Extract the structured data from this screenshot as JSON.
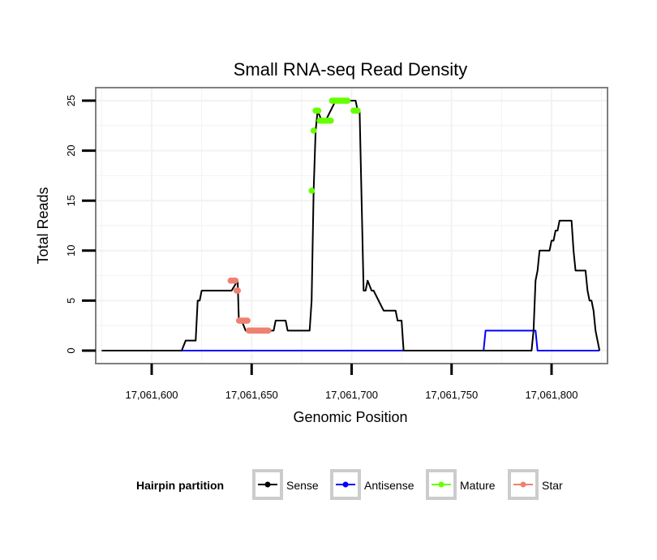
{
  "chart_data": {
    "type": "line",
    "title": "Small RNA-seq Read Density",
    "xlabel": "Genomic Position",
    "ylabel": "Total Reads",
    "xlim": [
      17061572,
      17061828
    ],
    "ylim": [
      -1.3,
      26.3
    ],
    "xticks": [
      17061600,
      17061650,
      17061700,
      17061750,
      17061800
    ],
    "xtick_labels": [
      "17,061,600",
      "17,061,650",
      "17,061,700",
      "17,061,750",
      "17,061,800"
    ],
    "yticks": [
      0,
      5,
      10,
      15,
      20,
      25
    ],
    "ytick_labels": [
      "0",
      "5",
      "10",
      "15",
      "20",
      "25"
    ],
    "grid": true,
    "legend": {
      "title": "Hairpin partition",
      "position": "bottom",
      "entries": [
        "Sense",
        "Antisense",
        "Mature",
        "Star"
      ]
    },
    "colors": {
      "Sense": "#000000",
      "Antisense": "#0000ff",
      "Mature": "#66ff00",
      "Star": "#f08070",
      "panel_border": "#7f7f7f",
      "grid": "#f2f2f2"
    },
    "series": [
      {
        "name": "Sense",
        "style": "line",
        "x": [
          17061575,
          17061615,
          17061617,
          17061622,
          17061623,
          17061624,
          17061625,
          17061640,
          17061643,
          17061643.6,
          17061645,
          17061647,
          17061650,
          17061651,
          17061656,
          17061661,
          17061662,
          17061667,
          17061668,
          17061678,
          17061679,
          17061680,
          17061681,
          17061682,
          17061683,
          17061685,
          17061687,
          17061692,
          17061702,
          17061703,
          17061704,
          17061706,
          17061707,
          17061708,
          17061710,
          17061711,
          17061716,
          17061717,
          17061722,
          17061723,
          17061725,
          17061726,
          17061790,
          17061791,
          17061792,
          17061793,
          17061794,
          17061795,
          17061799,
          17061800,
          17061801,
          17061802,
          17061803,
          17061804,
          17061805,
          17061806,
          17061810,
          17061811,
          17061812,
          17061813,
          17061817,
          17061818,
          17061819,
          17061820,
          17061821,
          17061822,
          17061823,
          17061824
        ],
        "y": [
          0,
          0,
          1,
          1,
          5,
          5,
          6,
          6,
          7,
          3,
          3,
          2,
          2,
          2,
          2,
          2,
          3,
          3,
          2,
          2,
          2,
          5,
          16,
          22,
          24,
          23,
          23,
          25,
          25,
          24,
          24,
          6,
          6,
          7,
          6,
          6,
          4,
          4,
          4,
          3,
          3,
          0,
          0,
          2,
          7,
          8,
          10,
          10,
          10,
          11,
          11,
          12,
          12,
          13,
          13,
          13,
          13,
          10,
          8,
          8,
          8,
          6,
          5,
          5,
          4,
          2,
          1,
          0
        ]
      },
      {
        "name": "Antisense",
        "style": "line",
        "x": [
          17061615,
          17061766,
          17061767,
          17061792,
          17061793,
          17061824
        ],
        "y": [
          0,
          0,
          2,
          2,
          0,
          0
        ]
      },
      {
        "name": "Mature",
        "style": "points",
        "x": [
          17061680,
          17061681,
          17061682,
          17061682.6,
          17061683.3,
          17061684,
          17061684.7,
          17061685.4,
          17061686.1,
          17061686.8,
          17061687.5,
          17061688.2,
          17061688.9,
          17061689.6,
          17061690.2,
          17061690.8,
          17061691.4,
          17061692,
          17061692.6,
          17061693.2,
          17061693.8,
          17061694.4,
          17061695,
          17061695.6,
          17061696.2,
          17061696.8,
          17061697.4,
          17061698,
          17061701,
          17061702,
          17061703
        ],
        "y": [
          16,
          22,
          24,
          24,
          24,
          23,
          23,
          23,
          23,
          23,
          23,
          23,
          23,
          23,
          25,
          25,
          25,
          25,
          25,
          25,
          25,
          25,
          25,
          25,
          25,
          25,
          25,
          25,
          24,
          24,
          24
        ]
      },
      {
        "name": "Star",
        "style": "points",
        "x": [
          17061639.5,
          17061640.1,
          17061640.7,
          17061641.3,
          17061641.9,
          17061642.5,
          17061643.1,
          17061643.7,
          17061644.4,
          17061645.1,
          17061645.8,
          17061646.5,
          17061647.2,
          17061647.9,
          17061648.6,
          17061649.3,
          17061650,
          17061650.7,
          17061651.4,
          17061652.1,
          17061652.8,
          17061653.5,
          17061654.2,
          17061654.9,
          17061655.6,
          17061656.3,
          17061657,
          17061657.7,
          17061658.3
        ],
        "y": [
          7,
          7,
          7,
          7,
          7,
          6,
          6,
          3,
          3,
          3,
          3,
          3,
          3,
          3,
          2,
          2,
          2,
          2,
          2,
          2,
          2,
          2,
          2,
          2,
          2,
          2,
          2,
          2,
          2
        ]
      }
    ]
  }
}
